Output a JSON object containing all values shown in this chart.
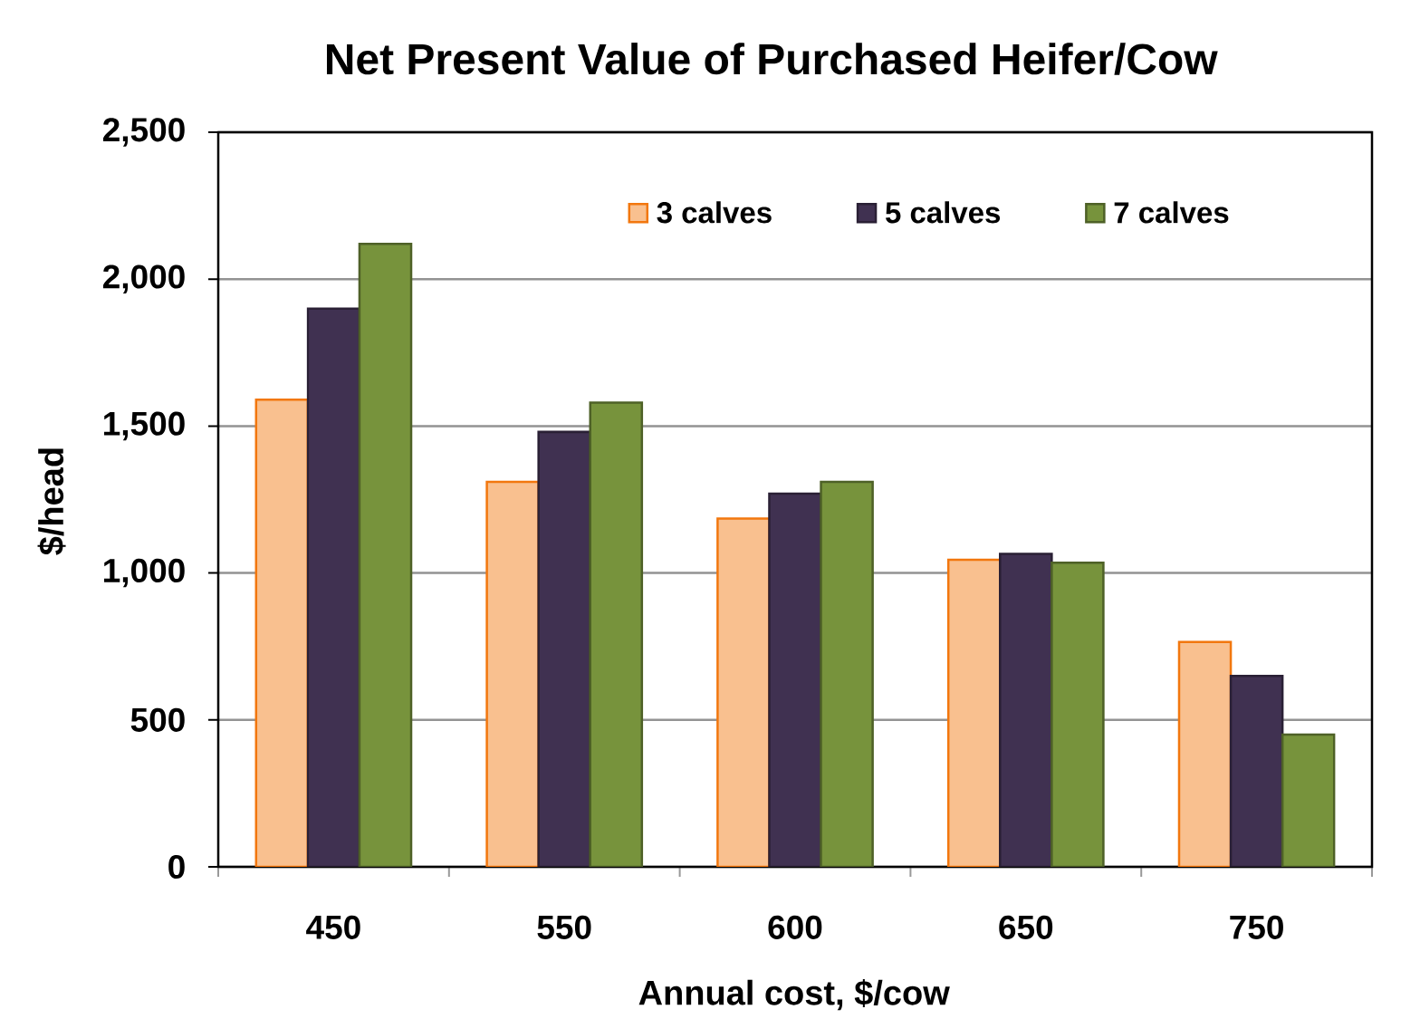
{
  "chart_data": {
    "type": "bar",
    "title": "Net Present Value of Purchased Heifer/Cow",
    "xlabel": "Annual cost, $/cow",
    "ylabel": "$/head",
    "categories": [
      "450",
      "550",
      "600",
      "650",
      "750"
    ],
    "series": [
      {
        "name": "3 calves",
        "color": "#f9c08f",
        "values": [
          1590,
          1310,
          1185,
          1045,
          765
        ]
      },
      {
        "name": "5 calves",
        "color": "#403151",
        "values": [
          1900,
          1480,
          1270,
          1065,
          650
        ]
      },
      {
        "name": "7 calves",
        "color": "#77933c",
        "values": [
          2120,
          1580,
          1310,
          1035,
          450
        ]
      }
    ],
    "ylim": [
      0,
      2500
    ],
    "yticks": [
      0,
      500,
      {
        "value": 1000,
        "label": "1,000"
      },
      {
        "value": 1500,
        "label": "1,500"
      },
      {
        "value": 2000,
        "label": "2,000"
      },
      {
        "value": 2500,
        "label": "2,500"
      }
    ],
    "grid": "y",
    "legend": "top right"
  }
}
